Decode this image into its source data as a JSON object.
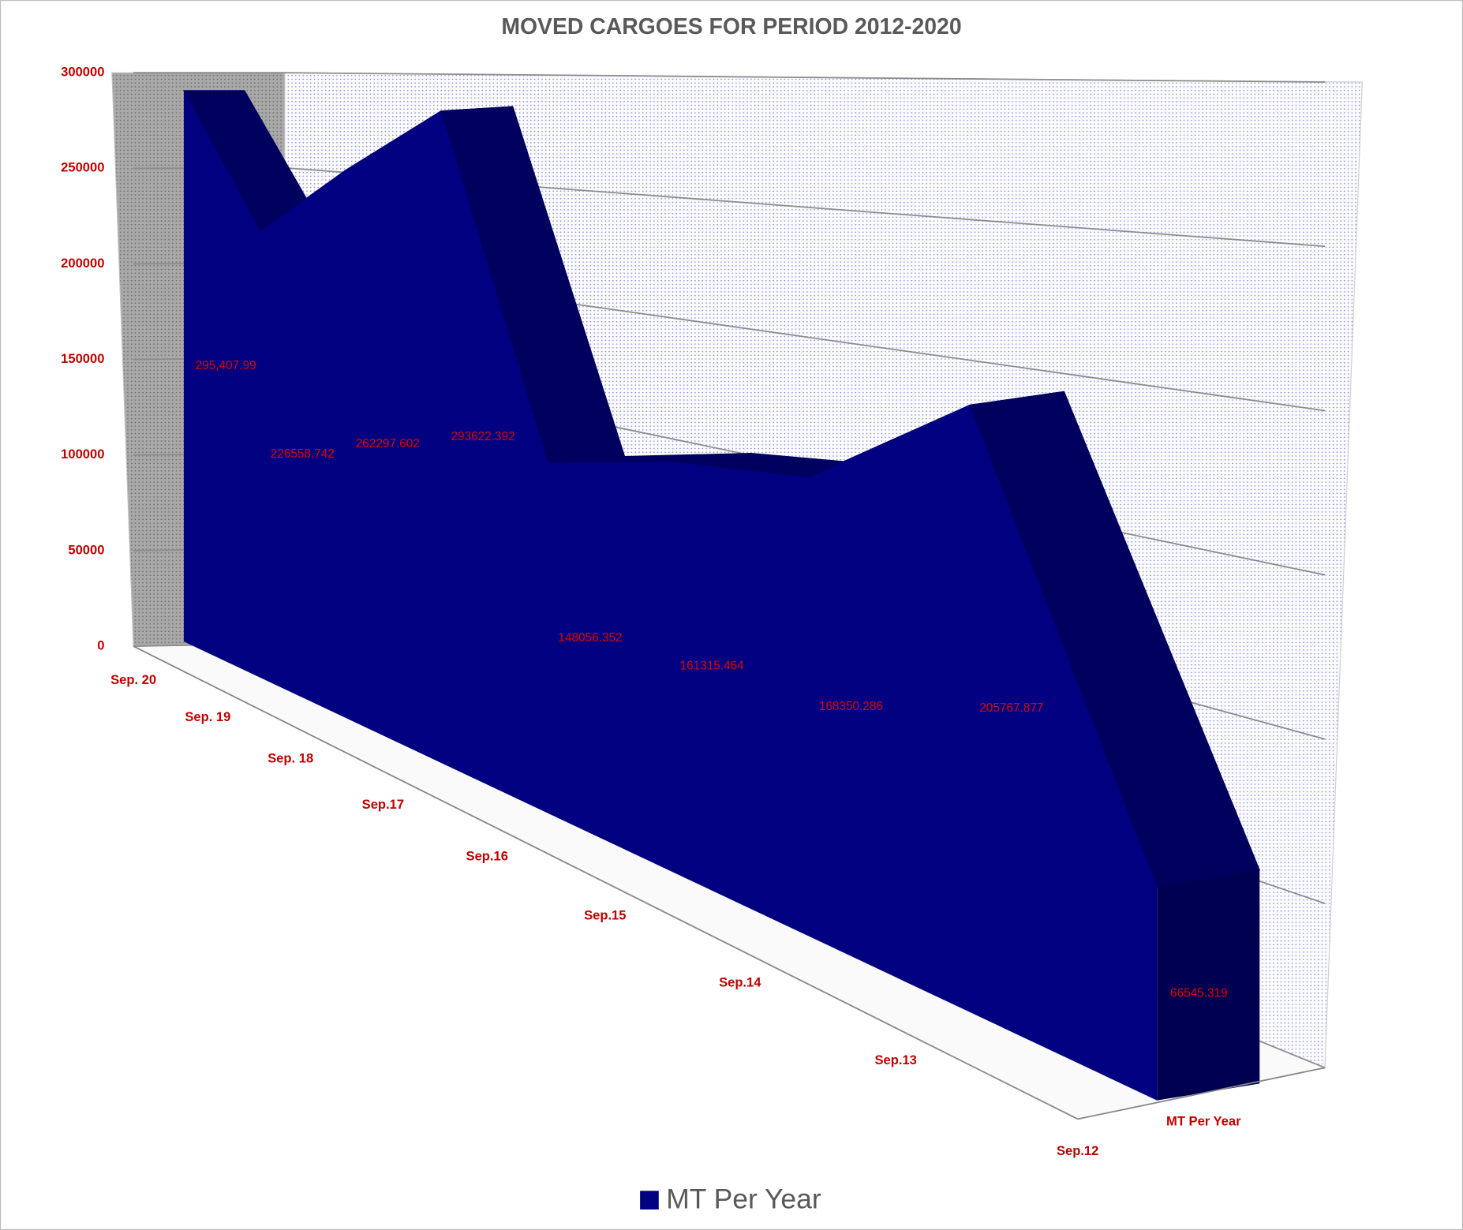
{
  "chart_data": {
    "type": "area",
    "title": "MOVED CARGOES FOR PERIOD 2012-2020",
    "categories": [
      "Sep. 20",
      "Sep. 19",
      "Sep. 18",
      "Sep.17",
      "Sep.16",
      "Sep.15",
      "Sep.14",
      "Sep.13",
      "Sep.12"
    ],
    "series": [
      {
        "name": "MT Per Year",
        "color": "#000080",
        "values": [
          295407.99,
          226558.742,
          262297.602,
          293622.392,
          148056.352,
          161315.464,
          168350.286,
          205767.877,
          66545.319
        ],
        "value_labels": [
          "295,407.99",
          "226558.742",
          "262297.602",
          "293622.392",
          "148056.352",
          "161315.464",
          "168350.286",
          "205767.877",
          "66545.319"
        ]
      }
    ],
    "ylim": [
      0,
      300000
    ],
    "yticks": [
      0,
      50000,
      100000,
      150000,
      200000,
      250000,
      300000
    ],
    "grid": true,
    "legend": "bottom"
  }
}
